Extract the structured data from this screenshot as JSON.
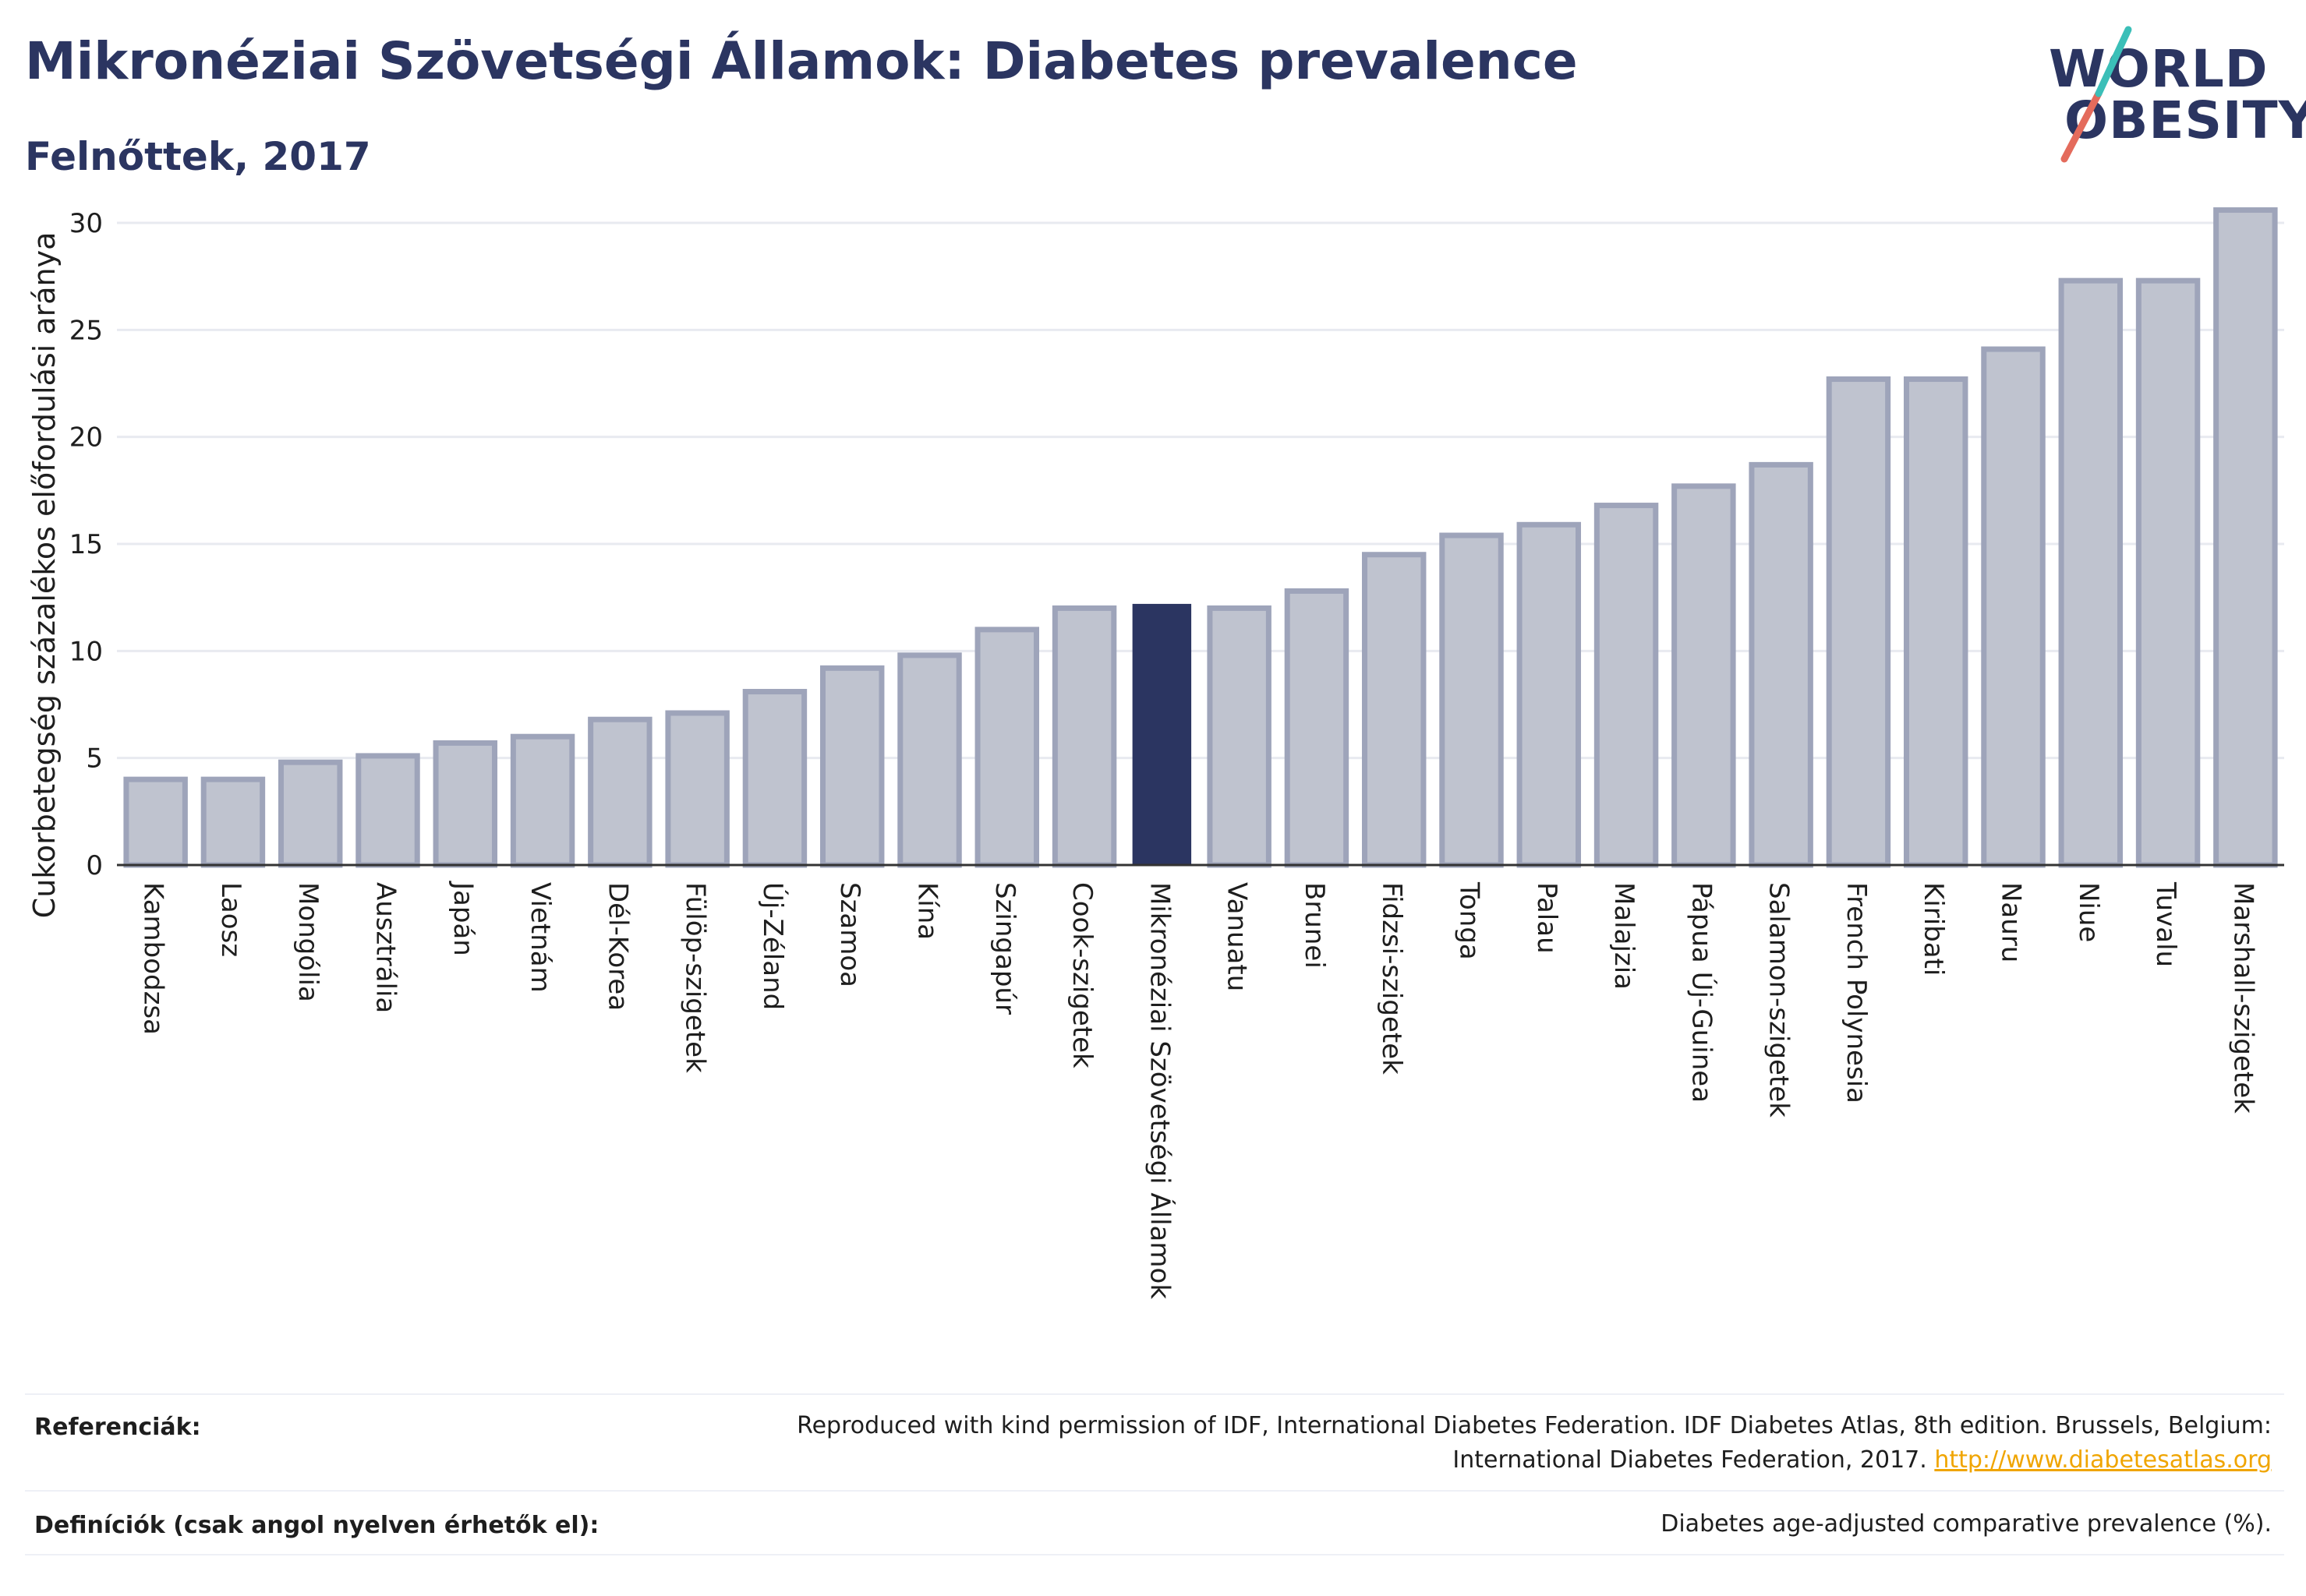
{
  "header": {
    "title": "Mikronéziai Szövetségi Államok: Diabetes prevalence",
    "subtitle": "Felnőttek, 2017"
  },
  "logo": {
    "line1": "WORLD",
    "line2": "OBESITY",
    "slash_colors": [
      "#e46b5c",
      "#3bbfb8"
    ]
  },
  "colors": {
    "highlight_bar": "#2b3561",
    "other_bar": "#bfc3cf",
    "bar_border": "#9ea4ba",
    "axis": "#333333",
    "grid": "#e8eaf0"
  },
  "chart_data": {
    "type": "bar",
    "title": "Mikronéziai Szövetségi Államok: Diabetes prevalence",
    "subtitle": "Felnőttek, 2017",
    "xlabel": "",
    "ylabel": "Cukorbetegség százalékos előfordulási aránya",
    "ylim": [
      0,
      32
    ],
    "yticks": [
      0,
      5,
      10,
      15,
      20,
      25,
      30
    ],
    "grid": true,
    "highlight": "Mikronéziai Szövetségi Államok",
    "categories": [
      "Kambodzsa",
      "Laosz",
      "Mongólia",
      "Ausztrália",
      "Japán",
      "Vietnám",
      "Dél-Korea",
      "Fülöp-szigetek",
      "Új-Zéland",
      "Szamoa",
      "Kína",
      "Szingapúr",
      "Cook-szigetek",
      "Mikronéziai Szövetségi Államok",
      "Vanuatu",
      "Brunei",
      "Fidzsi-szigetek",
      "Tonga",
      "Palau",
      "Malajzia",
      "Pápua Új-Guinea",
      "Salamon-szigetek",
      "French Polynesia",
      "Kiribati",
      "Nauru",
      "Niue",
      "Tuvalu",
      "Marshall-szigetek"
    ],
    "values": [
      4.0,
      4.0,
      4.8,
      5.1,
      5.7,
      6.0,
      6.8,
      7.1,
      8.1,
      9.2,
      9.8,
      11.0,
      12.0,
      12.2,
      12.0,
      12.8,
      14.5,
      15.4,
      15.9,
      16.8,
      17.7,
      18.7,
      22.7,
      22.7,
      24.1,
      27.3,
      27.3,
      30.6
    ]
  },
  "footer": {
    "references_label": "Referenciák:",
    "references_line1": "Reproduced with kind permission of IDF, International Diabetes Federation. IDF Diabetes Atlas, 8th edition. Brussels, Belgium:",
    "references_line2": "International Diabetes Federation, 2017.",
    "references_link": "http://www.diabetesatlas.org",
    "definitions_label": "Definíciók (csak angol nyelven érhetők el):",
    "definitions_text": "Diabetes age-adjusted comparative prevalence (%)."
  }
}
